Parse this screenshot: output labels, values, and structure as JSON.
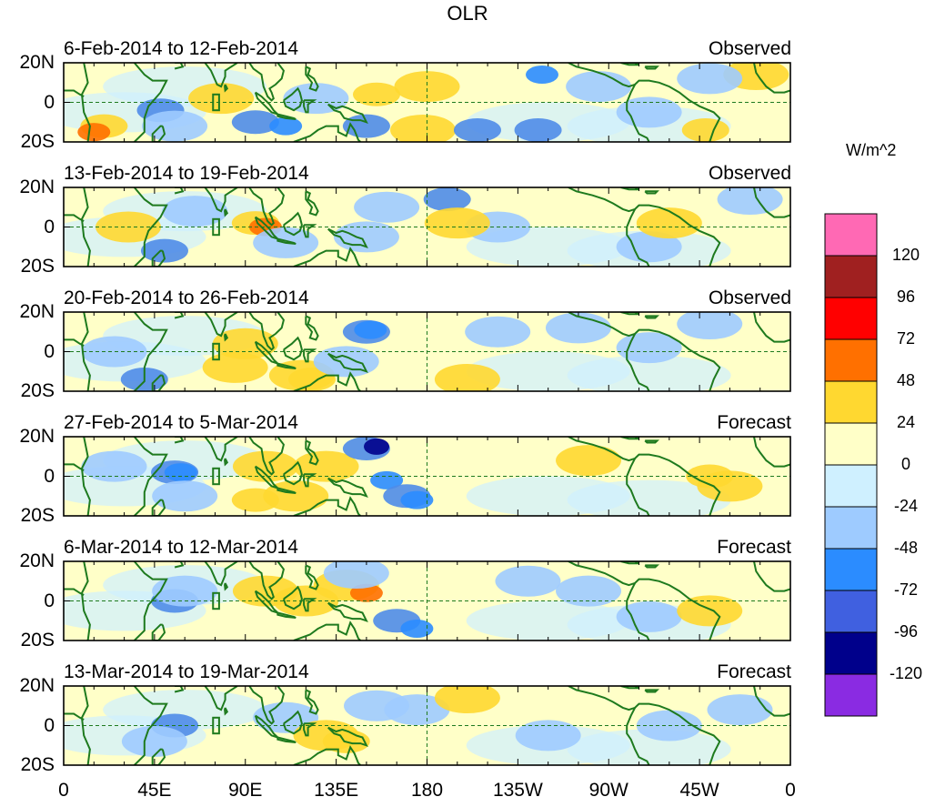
{
  "title": "OLR",
  "units": "W/m^2",
  "lat_labels": [
    "20N",
    "0",
    "20S"
  ],
  "lon_labels": [
    "0",
    "45E",
    "90E",
    "135E",
    "180",
    "135W",
    "90W",
    "45W",
    "0"
  ],
  "panels": [
    {
      "period": "6-Feb-2014 to 12-Feb-2014",
      "type": "Observed",
      "anomalies": [
        {
          "lon": 20,
          "lat": -12,
          "level": 48
        },
        {
          "lon": 15,
          "lat": -15,
          "level": 72
        },
        {
          "lon": 48,
          "lat": -4,
          "level": -48
        },
        {
          "lon": 55,
          "lat": -12,
          "level": -24
        },
        {
          "lon": 78,
          "lat": 2,
          "level": 24
        },
        {
          "lon": 95,
          "lat": -10,
          "level": -48
        },
        {
          "lon": 110,
          "lat": -12,
          "level": -72
        },
        {
          "lon": 125,
          "lat": 2,
          "level": -24
        },
        {
          "lon": 150,
          "lat": -12,
          "level": -48
        },
        {
          "lon": 180,
          "lat": 8,
          "level": 24
        },
        {
          "lon": 178,
          "lat": -14,
          "level": 24
        },
        {
          "lon": 155,
          "lat": 4,
          "level": 48
        },
        {
          "lon": 205,
          "lat": -14,
          "level": -48
        },
        {
          "lon": 235,
          "lat": -14,
          "level": -48
        },
        {
          "lon": 237,
          "lat": 14,
          "level": -72
        },
        {
          "lon": 265,
          "lat": 8,
          "level": -24
        },
        {
          "lon": 290,
          "lat": -5,
          "level": -24
        },
        {
          "lon": 318,
          "lat": -14,
          "level": 48
        },
        {
          "lon": 343,
          "lat": 14,
          "level": 24
        },
        {
          "lon": 320,
          "lat": 12,
          "level": -24
        }
      ]
    },
    {
      "period": "13-Feb-2014 to 19-Feb-2014",
      "type": "Observed",
      "anomalies": [
        {
          "lon": 32,
          "lat": 0,
          "level": 24
        },
        {
          "lon": 50,
          "lat": -12,
          "level": -48
        },
        {
          "lon": 65,
          "lat": 8,
          "level": -24
        },
        {
          "lon": 95,
          "lat": 2,
          "level": 48
        },
        {
          "lon": 100,
          "lat": 0,
          "level": 72
        },
        {
          "lon": 110,
          "lat": -8,
          "level": -24
        },
        {
          "lon": 150,
          "lat": -5,
          "level": -24
        },
        {
          "lon": 160,
          "lat": 10,
          "level": -24
        },
        {
          "lon": 190,
          "lat": 14,
          "level": -48
        },
        {
          "lon": 215,
          "lat": 0,
          "level": -24
        },
        {
          "lon": 195,
          "lat": 2,
          "level": 24
        },
        {
          "lon": 290,
          "lat": -10,
          "level": -24
        },
        {
          "lon": 300,
          "lat": 2,
          "level": 24
        },
        {
          "lon": 340,
          "lat": 14,
          "level": -24
        }
      ]
    },
    {
      "period": "20-Feb-2014 to 26-Feb-2014",
      "type": "Observed",
      "anomalies": [
        {
          "lon": 25,
          "lat": 0,
          "level": -24
        },
        {
          "lon": 40,
          "lat": -14,
          "level": -48
        },
        {
          "lon": 85,
          "lat": -8,
          "level": 24
        },
        {
          "lon": 90,
          "lat": 4,
          "level": 24
        },
        {
          "lon": 118,
          "lat": -12,
          "level": 24
        },
        {
          "lon": 123,
          "lat": -14,
          "level": 48
        },
        {
          "lon": 150,
          "lat": 10,
          "level": -48
        },
        {
          "lon": 152,
          "lat": 11,
          "level": -72
        },
        {
          "lon": 140,
          "lat": -5,
          "level": -24
        },
        {
          "lon": 200,
          "lat": -14,
          "level": 24
        },
        {
          "lon": 215,
          "lat": 10,
          "level": -24
        },
        {
          "lon": 255,
          "lat": 12,
          "level": -24
        },
        {
          "lon": 290,
          "lat": 2,
          "level": -24
        },
        {
          "lon": 320,
          "lat": 14,
          "level": -24
        }
      ]
    },
    {
      "period": "27-Feb-2014 to 5-Mar-2014",
      "type": "Forecast",
      "anomalies": [
        {
          "lon": 25,
          "lat": 5,
          "level": -24
        },
        {
          "lon": 55,
          "lat": 2,
          "level": -48
        },
        {
          "lon": 58,
          "lat": 2,
          "level": -72
        },
        {
          "lon": 60,
          "lat": -10,
          "level": -24
        },
        {
          "lon": 100,
          "lat": 5,
          "level": 24
        },
        {
          "lon": 115,
          "lat": -10,
          "level": 24
        },
        {
          "lon": 130,
          "lat": 5,
          "level": 24
        },
        {
          "lon": 95,
          "lat": -12,
          "level": 48
        },
        {
          "lon": 150,
          "lat": 14,
          "level": -48
        },
        {
          "lon": 155,
          "lat": 15,
          "level": -120
        },
        {
          "lon": 160,
          "lat": -2,
          "level": -72
        },
        {
          "lon": 170,
          "lat": -10,
          "level": -48
        },
        {
          "lon": 175,
          "lat": -12,
          "level": -72
        },
        {
          "lon": 260,
          "lat": 8,
          "level": 24
        },
        {
          "lon": 320,
          "lat": 0,
          "level": 48
        },
        {
          "lon": 330,
          "lat": -5,
          "level": 24
        }
      ]
    },
    {
      "period": "6-Mar-2014 to 12-Mar-2014",
      "type": "Forecast",
      "anomalies": [
        {
          "lon": 55,
          "lat": 0,
          "level": -48
        },
        {
          "lon": 60,
          "lat": 5,
          "level": -24
        },
        {
          "lon": 100,
          "lat": 5,
          "level": 24
        },
        {
          "lon": 120,
          "lat": 0,
          "level": 24
        },
        {
          "lon": 140,
          "lat": 8,
          "level": 24
        },
        {
          "lon": 150,
          "lat": 4,
          "level": 72
        },
        {
          "lon": 165,
          "lat": -10,
          "level": -48
        },
        {
          "lon": 175,
          "lat": -14,
          "level": -72
        },
        {
          "lon": 145,
          "lat": 14,
          "level": -24
        },
        {
          "lon": 230,
          "lat": 10,
          "level": -24
        },
        {
          "lon": 260,
          "lat": 5,
          "level": -24
        },
        {
          "lon": 290,
          "lat": -8,
          "level": -24
        },
        {
          "lon": 320,
          "lat": -5,
          "level": 24
        }
      ]
    },
    {
      "period": "13-Mar-2014 to 19-Mar-2014",
      "type": "Forecast",
      "anomalies": [
        {
          "lon": 55,
          "lat": 0,
          "level": -48
        },
        {
          "lon": 45,
          "lat": -8,
          "level": -24
        },
        {
          "lon": 110,
          "lat": 4,
          "level": -24
        },
        {
          "lon": 130,
          "lat": -5,
          "level": 24
        },
        {
          "lon": 140,
          "lat": -8,
          "level": 48
        },
        {
          "lon": 155,
          "lat": 10,
          "level": -24
        },
        {
          "lon": 175,
          "lat": 8,
          "level": -24
        },
        {
          "lon": 200,
          "lat": 14,
          "level": 24
        },
        {
          "lon": 240,
          "lat": -5,
          "level": -24
        },
        {
          "lon": 300,
          "lat": 0,
          "level": -24
        },
        {
          "lon": 335,
          "lat": 8,
          "level": -24
        }
      ]
    }
  ],
  "colorbar": {
    "levels": [
      "120",
      "96",
      "72",
      "48",
      "24",
      "0",
      "-24",
      "-48",
      "-72",
      "-96",
      "-120"
    ],
    "colors": [
      "#ff69b4",
      "#a02020",
      "#ff0000",
      "#ff7000",
      "#ffd830",
      "#ffffc8",
      "#cff0ff",
      "#9ecbff",
      "#2b8cff",
      "#4060e0",
      "#00008b",
      "#8a2be2"
    ]
  },
  "level_colors": {
    "-120": "#00008b",
    "-96": "#4060e0",
    "-72": "#2b8cff",
    "-48": "#4f8ce8",
    "-24": "#9ecbff",
    "24": "#ffd830",
    "48": "#ffd830",
    "72": "#ff7000"
  },
  "background_color": "#ffffc8",
  "coast_color": "#1e7a1e"
}
